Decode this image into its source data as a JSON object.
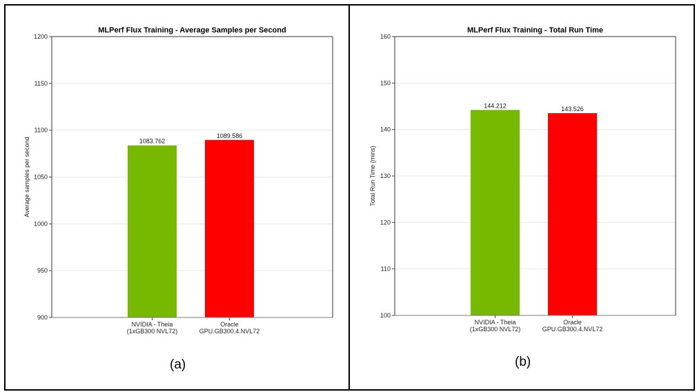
{
  "chart_data": [
    {
      "type": "bar",
      "title": "MLPerf Flux Training - Average Samples per Second",
      "xlabel": "",
      "ylabel": "Average samples per second",
      "ylim": [
        900,
        1200
      ],
      "yticks": [
        900,
        950,
        1000,
        1050,
        1100,
        1150,
        1200
      ],
      "grid": true,
      "categories": [
        [
          "NVIDIA - Theia",
          "(1xGB300 NVL72)"
        ],
        [
          "Oracle",
          "GPU.GB300.4.NVL72"
        ]
      ],
      "values": [
        1083.762,
        1089.586
      ],
      "data_labels": [
        "1083.762",
        "1089.586"
      ],
      "colors": [
        "#76b900",
        "#ff0000"
      ],
      "caption": "(a)"
    },
    {
      "type": "bar",
      "title": "MLPerf Flux Training - Total Run Time",
      "xlabel": "",
      "ylabel": "Total Run Time (mins)",
      "ylim": [
        100,
        160
      ],
      "yticks": [
        100,
        110,
        120,
        130,
        140,
        150,
        160
      ],
      "grid": true,
      "categories": [
        [
          "NVIDIA - Theia",
          "(1xGB300 NVL72)"
        ],
        [
          "Oracle",
          "GPU.GB300.4.NVL72"
        ]
      ],
      "values": [
        144.212,
        143.526
      ],
      "data_labels": [
        "144.212",
        "143.526"
      ],
      "colors": [
        "#76b900",
        "#ff0000"
      ],
      "caption": "(b)"
    }
  ]
}
